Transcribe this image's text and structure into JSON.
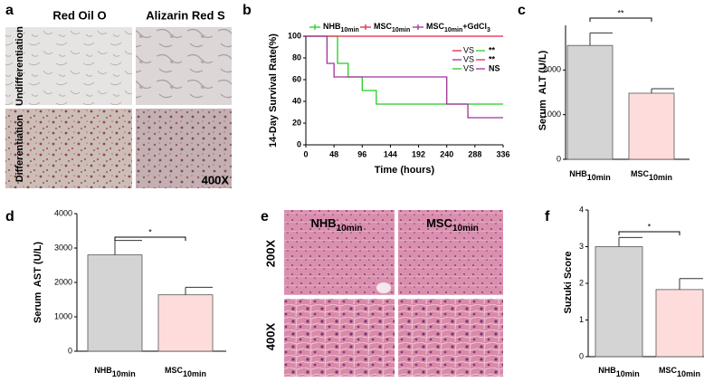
{
  "chart_data": [
    {
      "type": "line",
      "panel": "b",
      "step": true,
      "y_label": "14-Day Survival Rate(%)",
      "x_label": "Time (hours)",
      "xlim": [
        0,
        336
      ],
      "xticks": [
        0,
        48,
        96,
        144,
        192,
        240,
        288,
        336
      ],
      "ylim": [
        0,
        100
      ],
      "yticks": [
        0,
        20,
        40,
        60,
        80,
        100
      ],
      "series": [
        {
          "name": "NHB",
          "name_sub": "10min",
          "color": "#22cc22",
          "x": [
            0,
            54,
            72,
            96,
            120,
            336
          ],
          "values": [
            100,
            75,
            62.5,
            50,
            37.5,
            37.5
          ]
        },
        {
          "name": "MSC",
          "name_sub": "10min",
          "color": "#e8234a",
          "x": [
            0,
            336
          ],
          "values": [
            100,
            100
          ]
        },
        {
          "name": "MSC",
          "name_sub": "10min",
          "name_suffix": "+GdCl",
          "name_suffix_sub": "3",
          "color": "#a0309a",
          "x": [
            0,
            36,
            48,
            240,
            276,
            336
          ],
          "values": [
            100,
            75,
            62.5,
            37.5,
            25,
            25
          ]
        }
      ],
      "comparisons": [
        {
          "colors": [
            "#e8234a",
            "#22cc22"
          ],
          "text": "VS",
          "result": "**"
        },
        {
          "colors": [
            "#a0309a",
            "#e8234a"
          ],
          "text": "VS",
          "result": "**"
        },
        {
          "colors": [
            "#22cc22",
            "#a0309a"
          ],
          "text": "VS",
          "result": "NS"
        }
      ]
    },
    {
      "type": "bar",
      "panel": "c",
      "y_label": "Serum  ALT (U/L)",
      "categories": [
        "NHB",
        "MSC"
      ],
      "category_subscripts": [
        "10min",
        "10min"
      ],
      "values": [
        2550,
        1480
      ],
      "errors": [
        280,
        100
      ],
      "colors": [
        "#d4d4d4",
        "#ffdcdc"
      ],
      "ylim": [
        0,
        3000
      ],
      "yticks": [
        0,
        1000,
        2000
      ],
      "significance": "**"
    },
    {
      "type": "bar",
      "panel": "d",
      "y_label": "Serum  AST (U/L)",
      "categories": [
        "NHB",
        "MSC"
      ],
      "category_subscripts": [
        "10min",
        "10min"
      ],
      "values": [
        2800,
        1640
      ],
      "errors": [
        420,
        220
      ],
      "colors": [
        "#d4d4d4",
        "#ffdcdc"
      ],
      "ylim": [
        0,
        4000
      ],
      "yticks": [
        0,
        1000,
        2000,
        3000,
        4000
      ],
      "significance": "*"
    },
    {
      "type": "bar",
      "panel": "f",
      "y_label": "Suzuki Score",
      "categories": [
        "NHB",
        "MSC"
      ],
      "category_subscripts": [
        "10min",
        "10min"
      ],
      "values": [
        3.0,
        1.83
      ],
      "errors": [
        0.25,
        0.3
      ],
      "colors": [
        "#d4d4d4",
        "#ffdcdc"
      ],
      "ylim": [
        0,
        4
      ],
      "yticks": [
        0,
        1,
        2,
        3,
        4
      ],
      "significance": "*"
    }
  ],
  "image_panels": [
    {
      "panel": "a",
      "columns": [
        "Red Oil O",
        "Alizarin Red S"
      ],
      "rows": [
        "Undifferentiation",
        "Differentiation"
      ],
      "magnification": "400X"
    },
    {
      "panel": "e",
      "columns": [
        "NHB",
        "MSC"
      ],
      "column_subscripts": [
        "10min",
        "10min"
      ],
      "rows": [
        "200X",
        "400X"
      ]
    }
  ]
}
